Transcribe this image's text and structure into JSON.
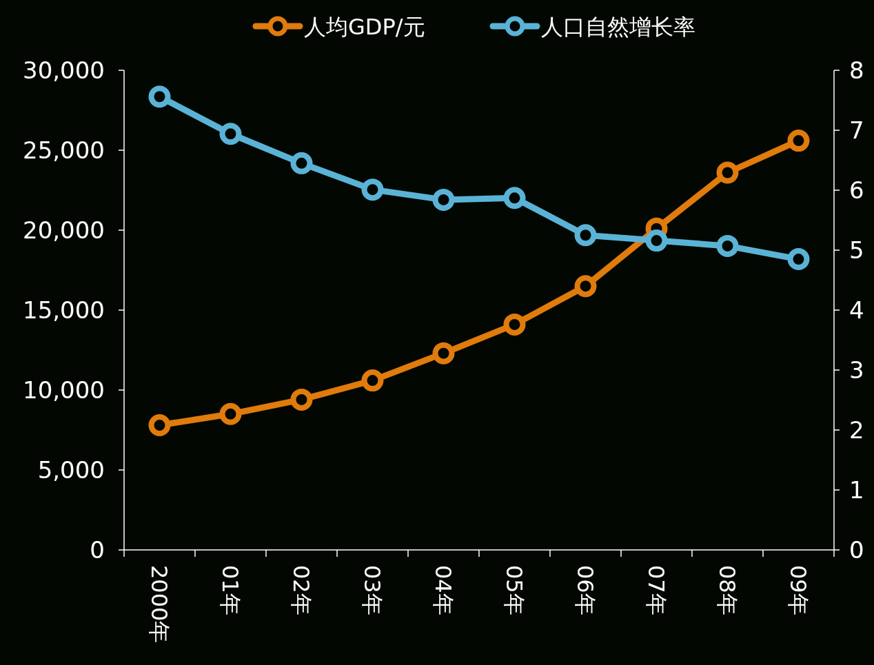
{
  "chart_data": {
    "type": "line",
    "categories": [
      "2000年",
      "01年",
      "02年",
      "03年",
      "04年",
      "05年",
      "06年",
      "07年",
      "08年",
      "09年"
    ],
    "series": [
      {
        "name": "人均GDP/元",
        "color": "#e07b0c",
        "values": [
          7800,
          8500,
          9400,
          10600,
          12300,
          14100,
          16500,
          20100,
          23600,
          25600
        ]
      },
      {
        "name": "人口自然增长率",
        "color": "#5ab3d6",
        "axis": "y2",
        "values": [
          7.56,
          6.94,
          6.45,
          6.01,
          5.84,
          5.87,
          5.25,
          5.16,
          5.07,
          4.85
        ]
      }
    ],
    "ylim": [
      0,
      30000
    ],
    "yticks": [
      {
        "value": 0,
        "label": "0"
      },
      {
        "value": 5000,
        "label": "5,000"
      },
      {
        "value": 10000,
        "label": "10,000"
      },
      {
        "value": 15000,
        "label": "15,000"
      },
      {
        "value": 20000,
        "label": "20,000"
      },
      {
        "value": 25000,
        "label": "25,000"
      },
      {
        "value": 30000,
        "label": "30,000"
      }
    ],
    "y2lim": [
      0,
      8
    ],
    "y2ticks": [
      0,
      1,
      2,
      3,
      4,
      5,
      6,
      7,
      8
    ],
    "legend": "top",
    "marker": "circle",
    "line_style": "solid",
    "grid": false
  }
}
